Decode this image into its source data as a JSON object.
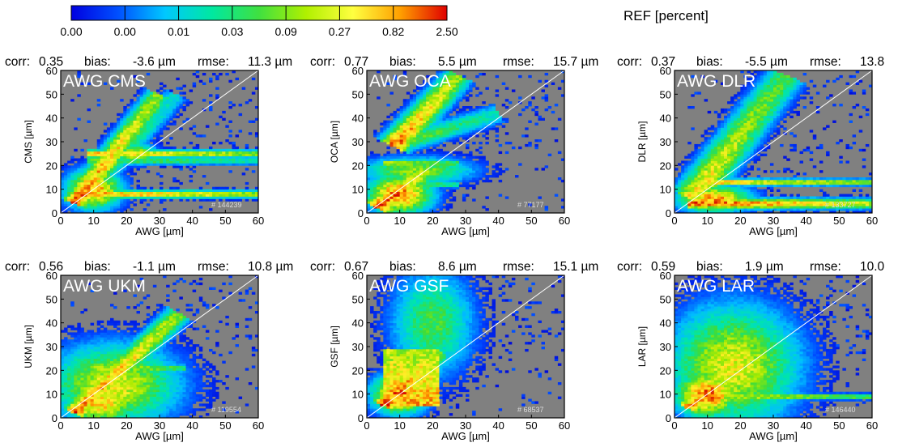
{
  "figure": {
    "colorbar": {
      "title": "REF [percent]",
      "tick_labels": [
        "0.00",
        "0.00",
        "0.01",
        "0.03",
        "0.09",
        "0.27",
        "0.82",
        "2.50"
      ],
      "colors": [
        "#0000e0",
        "#0050ff",
        "#00c8ff",
        "#00e8a0",
        "#40e040",
        "#b0f000",
        "#ffff40",
        "#ffa000",
        "#e00000"
      ]
    },
    "background_color": "#808080"
  },
  "chart_data": [
    {
      "type": "heatmap",
      "title": "AWG CMS",
      "stats": {
        "corr": "0.35",
        "bias": "-3.6 µm",
        "rmse": "11.3 µm"
      },
      "stats_labels": [
        "corr:",
        "bias:",
        "rmse:"
      ],
      "n_label": "# 144239",
      "xlabel": "AWG [µm]",
      "ylabel": "CMS [µm]",
      "xlim": [
        0,
        60
      ],
      "ylim": [
        0,
        60
      ],
      "xticks": [
        "0",
        "10",
        "20",
        "30",
        "40",
        "50",
        "60"
      ],
      "yticks": [
        "0",
        "10",
        "20",
        "30",
        "40",
        "50",
        "60"
      ],
      "features": [
        {
          "kind": "branch",
          "x0": 4,
          "y0": 4,
          "x1": 30,
          "y1": 50,
          "w": 3,
          "v": 0.9
        },
        {
          "kind": "branch",
          "x0": 14,
          "y0": 18,
          "x1": 35,
          "y1": 50,
          "w": 3,
          "v": 0.5
        },
        {
          "kind": "hband",
          "y": 8,
          "x0": 4,
          "x1": 60,
          "w": 1.2,
          "v": 0.9
        },
        {
          "kind": "hband",
          "y": 25,
          "x0": 8,
          "x1": 60,
          "w": 1.2,
          "v": 0.85
        },
        {
          "kind": "hband",
          "y": 22,
          "x0": 8,
          "x1": 60,
          "w": 1.2,
          "v": 0.55
        },
        {
          "kind": "blob",
          "x": 10,
          "y": 10,
          "rx": 6,
          "ry": 6,
          "v": 0.85
        },
        {
          "kind": "blob",
          "x": 22,
          "y": 25,
          "rx": 5,
          "ry": 3,
          "v": 0.7
        }
      ]
    },
    {
      "type": "heatmap",
      "title": "AWG OCA",
      "stats": {
        "corr": "0.77",
        "bias": "5.5 µm",
        "rmse": "15.7 µm"
      },
      "stats_labels": [
        "corr:",
        "bias:",
        "rmse:"
      ],
      "n_label": "# 77177",
      "xlabel": "AWG [µm]",
      "ylabel": "OCA [µm]",
      "xlim": [
        0,
        60
      ],
      "ylim": [
        0,
        60
      ],
      "xticks": [
        "0",
        "10",
        "20",
        "30",
        "40",
        "50",
        "60"
      ],
      "yticks": [
        "0",
        "10",
        "20",
        "30",
        "40",
        "50",
        "60"
      ],
      "features": [
        {
          "kind": "branch",
          "x0": 8,
          "y0": 28,
          "x1": 28,
          "y1": 58,
          "w": 3.5,
          "v": 0.9
        },
        {
          "kind": "branch",
          "x0": 12,
          "y0": 30,
          "x1": 40,
          "y1": 42,
          "w": 3,
          "v": 0.55
        },
        {
          "kind": "branch",
          "x0": 3,
          "y0": 2,
          "x1": 18,
          "y1": 18,
          "w": 3.5,
          "v": 0.95
        },
        {
          "kind": "blob",
          "x": 10,
          "y": 8,
          "rx": 7,
          "ry": 6,
          "v": 0.9
        },
        {
          "kind": "blob",
          "x": 15,
          "y": 18,
          "rx": 12,
          "ry": 4,
          "v": 0.6
        },
        {
          "kind": "hband",
          "y": 21,
          "x0": 5,
          "x1": 28,
          "w": 1,
          "v": 0.7
        },
        {
          "kind": "hband",
          "y": 12,
          "x0": 5,
          "x1": 28,
          "w": 1,
          "v": 0.6
        }
      ]
    },
    {
      "type": "heatmap",
      "title": "AWG DLR",
      "stats": {
        "corr": "0.37",
        "bias": "-5.5 µm",
        "rmse": "13.8"
      },
      "stats_labels": [
        "corr:",
        "bias:",
        "rmse:"
      ],
      "n_label": "# 133727",
      "xlabel": "AWG [µm]",
      "ylabel": "DLR [µm]",
      "xlim": [
        0,
        60
      ],
      "ylim": [
        0,
        60
      ],
      "xticks": [
        "0",
        "10",
        "20",
        "30",
        "40",
        "50",
        "60"
      ],
      "yticks": [
        "0",
        "10",
        "20",
        "30",
        "40",
        "50",
        "60"
      ],
      "features": [
        {
          "kind": "branch",
          "x0": 5,
          "y0": 6,
          "x1": 34,
          "y1": 58,
          "w": 4.5,
          "v": 0.75
        },
        {
          "kind": "hband",
          "y": 4,
          "x0": 4,
          "x1": 60,
          "w": 1.6,
          "v": 0.95
        },
        {
          "kind": "hband",
          "y": 13,
          "x0": 8,
          "x1": 60,
          "w": 1,
          "v": 0.85
        },
        {
          "kind": "blob",
          "x": 12,
          "y": 6,
          "rx": 8,
          "ry": 4,
          "v": 0.85
        }
      ]
    },
    {
      "type": "heatmap",
      "title": "AWG UKM",
      "stats": {
        "corr": "0.56",
        "bias": "-1.1 µm",
        "rmse": "10.8 µm"
      },
      "stats_labels": [
        "corr:",
        "bias:",
        "rmse:"
      ],
      "n_label": "# 119554",
      "xlabel": "AWG [µm]",
      "ylabel": "UKM [µm]",
      "xlim": [
        0,
        60
      ],
      "ylim": [
        0,
        60
      ],
      "xticks": [
        "0",
        "10",
        "20",
        "30",
        "40",
        "50",
        "60"
      ],
      "yticks": [
        "0",
        "10",
        "20",
        "30",
        "40",
        "50",
        "60"
      ],
      "features": [
        {
          "kind": "branch",
          "x0": 4,
          "y0": 2,
          "x1": 36,
          "y1": 44,
          "w": 3,
          "v": 0.9
        },
        {
          "kind": "blob",
          "x": 16,
          "y": 14,
          "rx": 14,
          "ry": 12,
          "v": 0.7
        },
        {
          "kind": "hband",
          "y": 21,
          "x0": 10,
          "x1": 38,
          "w": 1.2,
          "v": 0.7
        },
        {
          "kind": "blob",
          "x": 12,
          "y": 6,
          "rx": 8,
          "ry": 6,
          "v": 0.8
        }
      ]
    },
    {
      "type": "heatmap",
      "title": "AWG GSF",
      "stats": {
        "corr": "0.67",
        "bias": "8.6 µm",
        "rmse": "15.1 µm"
      },
      "stats_labels": [
        "corr:",
        "bias:",
        "rmse:"
      ],
      "n_label": "# 68537",
      "xlabel": "AWG [µm]",
      "ylabel": "GSF [µm]",
      "xlim": [
        0,
        60
      ],
      "ylim": [
        0,
        60
      ],
      "xticks": [
        "0",
        "10",
        "20",
        "30",
        "40",
        "50",
        "60"
      ],
      "yticks": [
        "0",
        "10",
        "20",
        "30",
        "40",
        "50",
        "60"
      ],
      "features": [
        {
          "kind": "rect",
          "x0": 5,
          "y0": 5,
          "x1": 22,
          "y1": 29,
          "v": 0.82
        },
        {
          "kind": "branch",
          "x0": 5,
          "y0": 5,
          "x1": 22,
          "y1": 28,
          "w": 3,
          "v": 0.95
        },
        {
          "kind": "blob",
          "x": 20,
          "y": 40,
          "rx": 9,
          "ry": 16,
          "v": 0.5
        },
        {
          "kind": "blob",
          "x": 10,
          "y": 10,
          "rx": 6,
          "ry": 6,
          "v": 0.9
        }
      ]
    },
    {
      "type": "heatmap",
      "title": "AWG LAR",
      "stats": {
        "corr": "0.59",
        "bias": "1.9 µm",
        "rmse": "10.0"
      },
      "stats_labels": [
        "corr:",
        "bias:",
        "rmse:"
      ],
      "n_label": "# 146440",
      "xlabel": "AWG [µm]",
      "ylabel": "LAR [µm]",
      "xlim": [
        0,
        60
      ],
      "ylim": [
        0,
        60
      ],
      "xticks": [
        "0",
        "10",
        "20",
        "30",
        "40",
        "50",
        "60"
      ],
      "yticks": [
        "0",
        "10",
        "20",
        "30",
        "40",
        "50",
        "60"
      ],
      "features": [
        {
          "kind": "blob",
          "x": 18,
          "y": 22,
          "rx": 14,
          "ry": 18,
          "v": 0.7
        },
        {
          "kind": "blob",
          "x": 10,
          "y": 10,
          "rx": 7,
          "ry": 7,
          "v": 0.9
        },
        {
          "kind": "hband",
          "y": 9,
          "x0": 10,
          "x1": 60,
          "w": 0.9,
          "v": 0.75
        },
        {
          "kind": "branch",
          "x0": 4,
          "y0": 4,
          "x1": 16,
          "y1": 18,
          "w": 3,
          "v": 0.9
        }
      ]
    }
  ]
}
